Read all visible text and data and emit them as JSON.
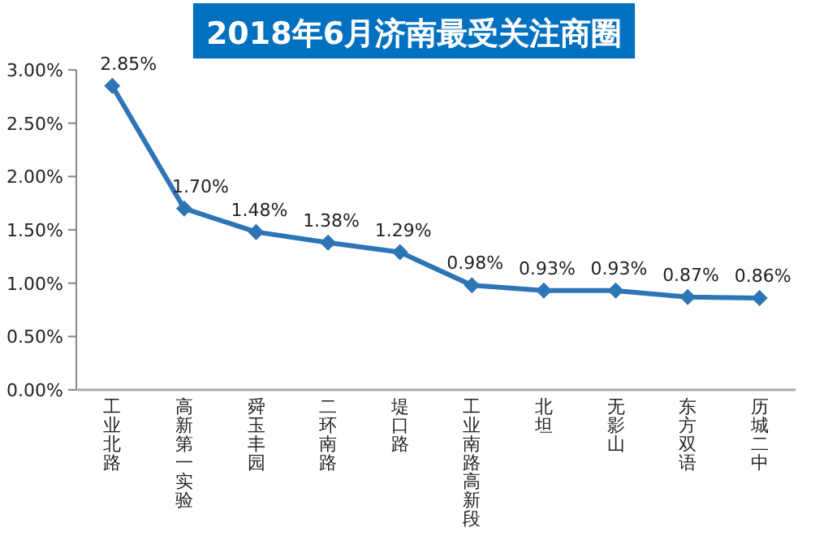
{
  "chart_data": {
    "type": "line",
    "title": "2018年6月济南最受关注商圈",
    "categories": [
      "工业北路",
      "高新第一实验",
      "舜玉丰园",
      "二环南路",
      "堤口路",
      "工业南路高新段",
      "北坦",
      "无影山",
      "东方双语",
      "历城二中"
    ],
    "series": [
      {
        "color": "#2e75b6",
        "values": [
          2.85,
          1.7,
          1.48,
          1.38,
          1.29,
          0.98,
          0.93,
          0.93,
          0.87,
          0.86
        ]
      }
    ],
    "ylim": [
      0,
      3
    ],
    "yticks": [
      {
        "value": 0,
        "label": "0.00%"
      },
      {
        "value": 0.5,
        "label": "0.50%"
      },
      {
        "value": 1,
        "label": "1.00%"
      },
      {
        "value": 1.5,
        "label": "1.50%"
      },
      {
        "value": 2,
        "label": "2.00%"
      },
      {
        "value": 2.5,
        "label": "2.50%"
      },
      {
        "value": 3,
        "label": "3.00%"
      }
    ],
    "value_labels": [
      "2.85%",
      "1.70%",
      "1.48%",
      "1.38%",
      "1.29%",
      "0.98%",
      "0.93%",
      "0.93%",
      "0.87%",
      "0.86%"
    ],
    "marker": "diamond",
    "line_style": "solid",
    "grid": false
  }
}
